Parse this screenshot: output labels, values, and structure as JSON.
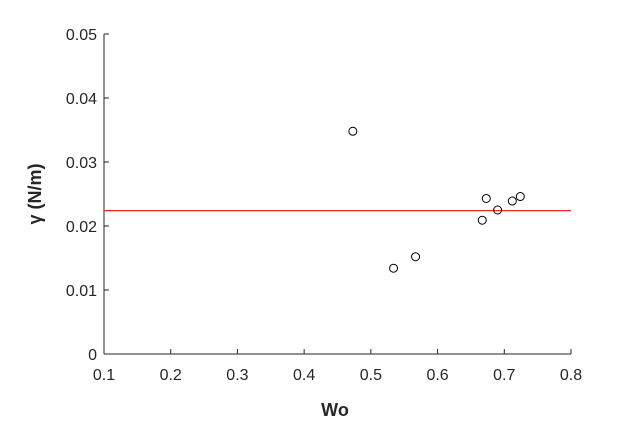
{
  "chart_data": {
    "type": "scatter",
    "title": "",
    "xlabel": "Wo",
    "ylabel": "γ (N/m)",
    "xlim": [
      0.1,
      0.8
    ],
    "ylim": [
      0,
      0.05
    ],
    "x_ticks": [
      "0.1",
      "0.2",
      "0.3",
      "0.4",
      "0.5",
      "0.6",
      "0.7",
      "0.8"
    ],
    "y_ticks": [
      "0",
      "0.01",
      "0.02",
      "0.03",
      "0.04",
      "0.05"
    ],
    "grid": false,
    "legend": "none",
    "marker": "open-circle",
    "marker_color": "#000000",
    "points": [
      {
        "x": 0.473,
        "y": 0.0348
      },
      {
        "x": 0.534,
        "y": 0.0134
      },
      {
        "x": 0.567,
        "y": 0.0152
      },
      {
        "x": 0.667,
        "y": 0.0209
      },
      {
        "x": 0.673,
        "y": 0.0243
      },
      {
        "x": 0.69,
        "y": 0.0225
      },
      {
        "x": 0.712,
        "y": 0.0239
      },
      {
        "x": 0.724,
        "y": 0.0246
      }
    ],
    "reference_line": {
      "y": 0.0224,
      "color": "#e8282b"
    },
    "axis_color": "#262626"
  }
}
